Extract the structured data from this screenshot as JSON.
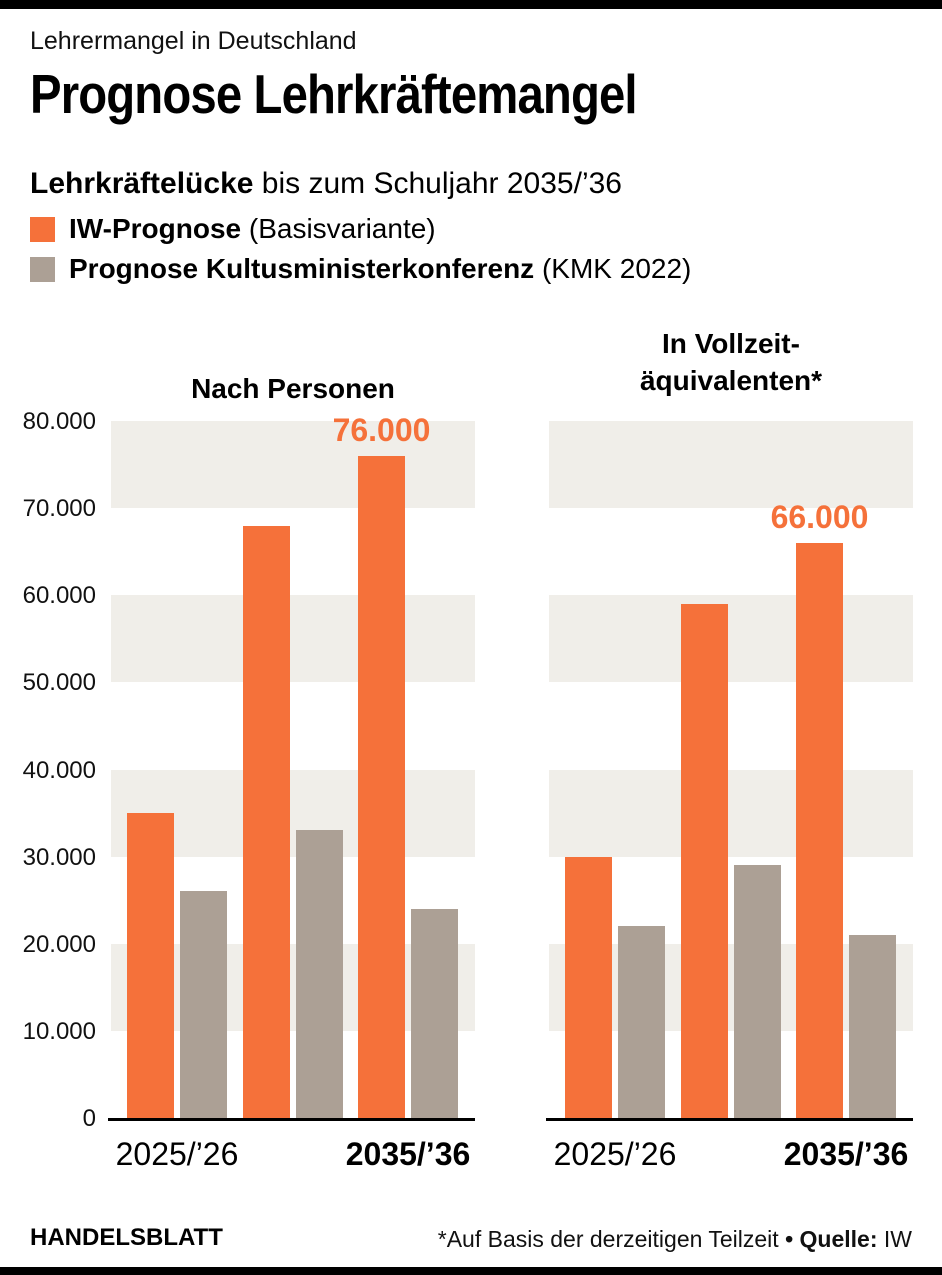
{
  "page": {
    "kicker": "Lehrermangel in Deutschland",
    "title": "Prognose Lehrkräftemangel",
    "subtitle_bold": "Lehrkräftelücke",
    "subtitle_rest": " bis zum Schuljahr 2035/’36"
  },
  "colors": {
    "accent_orange": "#f5713a",
    "secondary_gray": "#aca095",
    "stripe": "#f0eee9",
    "rule_black": "#000000"
  },
  "legend": {
    "items": [
      {
        "label_bold": "IW-Prognose",
        "label_rest": " (Basisvariante)",
        "color": "#f5713a"
      },
      {
        "label_bold": "Prognose Kultusministerkonferenz",
        "label_rest": " (KMK 2022)",
        "color": "#aca095"
      }
    ]
  },
  "y_axis": {
    "tick_labels": [
      "0",
      "10.000",
      "20.000",
      "30.000",
      "40.000",
      "50.000",
      "60.000",
      "70.000",
      "80.000"
    ],
    "tick_values": [
      0,
      10000,
      20000,
      30000,
      40000,
      50000,
      60000,
      70000,
      80000
    ]
  },
  "chart_data": [
    {
      "type": "bar",
      "title": "Nach Personen",
      "title_lines": [
        "Nach Personen"
      ],
      "categories": [
        {
          "label": "2025/’26",
          "bold": false
        },
        {
          "label": "",
          "bold": false
        },
        {
          "label": "2035/’36",
          "bold": true
        }
      ],
      "series": [
        {
          "name": "IW-Prognose (Basisvariante)",
          "color": "#f5713a",
          "values": [
            35000,
            68000,
            76000
          ]
        },
        {
          "name": "Prognose Kultusministerkonferenz (KMK 2022)",
          "color": "#aca095",
          "values": [
            26000,
            33000,
            24000
          ]
        }
      ],
      "ylim": [
        0,
        80000
      ],
      "ytick_step": 10000,
      "grid": "striped-bands",
      "legend_position": "top-left",
      "data_labels": [
        {
          "series": 0,
          "index": 2,
          "text": "76.000"
        }
      ]
    },
    {
      "type": "bar",
      "title": "In Vollzeit-äquivalenten*",
      "title_lines": [
        "In Vollzeit-",
        "äquivalenten*"
      ],
      "categories": [
        {
          "label": "2025/’26",
          "bold": false
        },
        {
          "label": "",
          "bold": false
        },
        {
          "label": "2035/’36",
          "bold": true
        }
      ],
      "series": [
        {
          "name": "IW-Prognose (Basisvariante)",
          "color": "#f5713a",
          "values": [
            30000,
            59000,
            66000
          ]
        },
        {
          "name": "Prognose Kultusministerkonferenz (KMK 2022)",
          "color": "#aca095",
          "values": [
            22000,
            29000,
            21000
          ]
        }
      ],
      "ylim": [
        0,
        80000
      ],
      "ytick_step": 10000,
      "grid": "striped-bands",
      "legend_position": "top-left",
      "data_labels": [
        {
          "series": 0,
          "index": 2,
          "text": "66.000"
        }
      ]
    }
  ],
  "footer": {
    "brand": "HANDELSBLATT",
    "footnote": "*Auf Basis der derzeitigen Teilzeit",
    "separator": "•",
    "source_label": "Quelle:",
    "source_value": "IW"
  }
}
